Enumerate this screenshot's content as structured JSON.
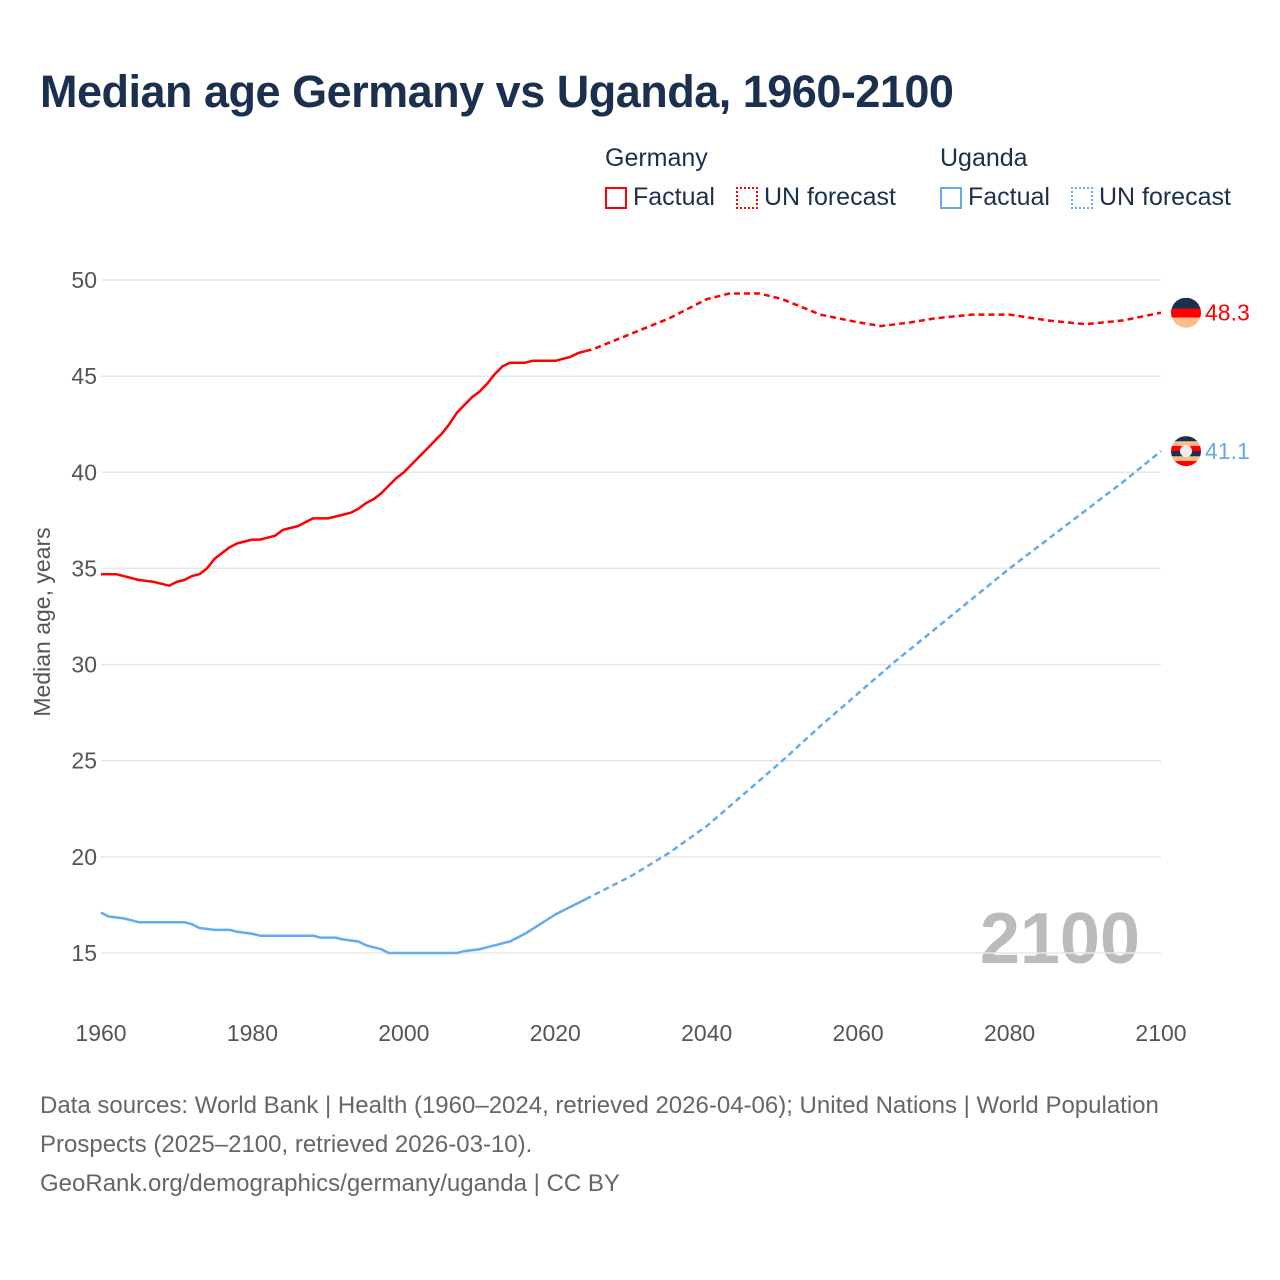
{
  "title": "Median age Germany vs Uganda, 1960-2100",
  "legend": {
    "germany": {
      "label": "Germany",
      "factual": "Factual",
      "forecast": "UN forecast",
      "color": "#ff0000"
    },
    "uganda": {
      "label": "Uganda",
      "factual": "Factual",
      "forecast": "UN forecast",
      "color": "#66aaee"
    }
  },
  "chart_data": {
    "type": "line",
    "title": "Median age Germany vs Uganda, 1960-2100",
    "xlabel": "",
    "ylabel": "Median age, years",
    "xlim": [
      1960,
      2100
    ],
    "ylim": [
      15,
      50
    ],
    "x_ticks": [
      "1960",
      "1980",
      "2000",
      "2020",
      "2040",
      "2060",
      "2080",
      "2100"
    ],
    "y_ticks": [
      "15",
      "20",
      "25",
      "30",
      "35",
      "40",
      "45",
      "50"
    ],
    "grid": true,
    "year_watermark": "2100",
    "series": [
      {
        "name": "Germany Factual",
        "color": "#ff0000",
        "dashed": false,
        "x": [
          1960,
          1962,
          1965,
          1967,
          1969,
          1970,
          1971,
          1972,
          1973,
          1974,
          1975,
          1976,
          1977,
          1978,
          1979,
          1980,
          1981,
          1982,
          1983,
          1984,
          1985,
          1986,
          1987,
          1988,
          1989,
          1990,
          1991,
          1992,
          1993,
          1994,
          1995,
          1996,
          1997,
          1998,
          1999,
          2000,
          2001,
          2002,
          2003,
          2004,
          2005,
          2006,
          2007,
          2008,
          2009,
          2010,
          2011,
          2012,
          2013,
          2014,
          2015,
          2016,
          2017,
          2018,
          2019,
          2020,
          2021,
          2022,
          2023,
          2024
        ],
        "y": [
          34.7,
          34.7,
          34.4,
          34.3,
          34.1,
          34.3,
          34.4,
          34.6,
          34.7,
          35.0,
          35.5,
          35.8,
          36.1,
          36.3,
          36.4,
          36.5,
          36.5,
          36.6,
          36.7,
          37.0,
          37.1,
          37.2,
          37.4,
          37.6,
          37.6,
          37.6,
          37.7,
          37.8,
          37.9,
          38.1,
          38.4,
          38.6,
          38.9,
          39.3,
          39.7,
          40.0,
          40.4,
          40.8,
          41.2,
          41.6,
          42.0,
          42.5,
          43.1,
          43.5,
          43.9,
          44.2,
          44.6,
          45.1,
          45.5,
          45.7,
          45.7,
          45.7,
          45.8,
          45.8,
          45.8,
          45.8,
          45.9,
          46.0,
          46.2,
          46.3
        ]
      },
      {
        "name": "Germany UN forecast",
        "color": "#ff0000",
        "dashed": true,
        "x": [
          2024,
          2025,
          2030,
          2035,
          2040,
          2043,
          2047,
          2050,
          2055,
          2060,
          2063,
          2067,
          2070,
          2075,
          2080,
          2085,
          2090,
          2095,
          2100
        ],
        "y": [
          46.3,
          46.4,
          47.2,
          48.0,
          49.0,
          49.3,
          49.3,
          49.0,
          48.2,
          47.8,
          47.6,
          47.8,
          48.0,
          48.2,
          48.2,
          47.9,
          47.7,
          47.9,
          48.3
        ]
      },
      {
        "name": "Uganda Factual",
        "color": "#66aaee",
        "dashed": false,
        "x": [
          1960,
          1961,
          1963,
          1965,
          1971,
          1972,
          1973,
          1975,
          1977,
          1978,
          1980,
          1981,
          1988,
          1989,
          1991,
          1992,
          1994,
          1995,
          1997,
          1998,
          2007,
          2008,
          2010,
          2012,
          2014,
          2016,
          2018,
          2020,
          2022,
          2024
        ],
        "y": [
          17.1,
          16.9,
          16.8,
          16.6,
          16.6,
          16.5,
          16.3,
          16.2,
          16.2,
          16.1,
          16.0,
          15.9,
          15.9,
          15.8,
          15.8,
          15.7,
          15.6,
          15.4,
          15.2,
          15.0,
          15.0,
          15.1,
          15.2,
          15.4,
          15.6,
          16.0,
          16.5,
          17.0,
          17.4,
          17.8
        ]
      },
      {
        "name": "Uganda UN forecast",
        "color": "#66aaee",
        "dashed": true,
        "x": [
          2024,
          2030,
          2035,
          2040,
          2045,
          2050,
          2055,
          2060,
          2065,
          2070,
          2075,
          2080,
          2085,
          2090,
          2095,
          2100
        ],
        "y": [
          17.8,
          19.0,
          20.2,
          21.6,
          23.3,
          25.0,
          26.8,
          28.5,
          30.2,
          31.8,
          33.4,
          35.0,
          36.5,
          38.0,
          39.5,
          41.1
        ]
      }
    ],
    "end_labels": [
      {
        "country": "Germany",
        "value": "48.3",
        "color": "#ff0000"
      },
      {
        "country": "Uganda",
        "value": "41.1",
        "color": "#66aaee"
      }
    ]
  },
  "source": {
    "line1": "Data sources: World Bank | Health (1960–2024, retrieved 2026-04-06); United Nations | World Population Prospects (2025–2100, retrieved 2026-03-10).",
    "line2": "GeoRank.org/demographics/germany/uganda | CC BY"
  }
}
